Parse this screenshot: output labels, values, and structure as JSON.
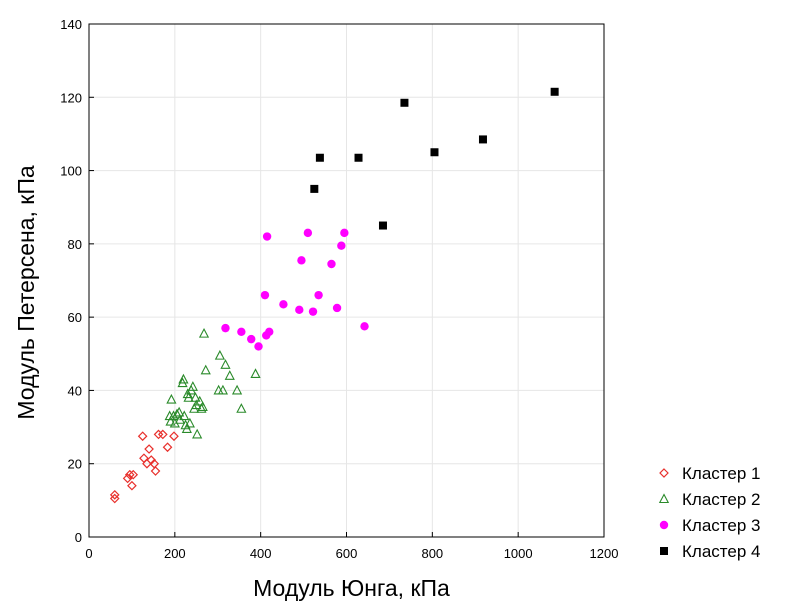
{
  "chart_data": {
    "type": "scatter",
    "title": "",
    "xlabel": "Модуль Юнга, кПа",
    "ylabel": "Модуль Петерсена, кПа",
    "xlim": [
      0,
      1200
    ],
    "ylim": [
      0,
      140
    ],
    "xticks": [
      "0",
      "200",
      "400",
      "600",
      "800",
      "1000",
      "1200"
    ],
    "yticks": [
      "0",
      "20",
      "40",
      "60",
      "80",
      "100",
      "120",
      "140"
    ],
    "grid": true,
    "legend_position": "bottom-right, outside plot",
    "series": [
      {
        "name": "Кластер 1",
        "marker": "open-diamond",
        "color": "#e8302c",
        "points": [
          [
            60,
            11.5
          ],
          [
            60,
            10.5
          ],
          [
            90,
            16
          ],
          [
            95,
            17
          ],
          [
            100,
            14
          ],
          [
            103,
            17
          ],
          [
            125,
            27.5
          ],
          [
            128,
            21.5
          ],
          [
            135,
            20
          ],
          [
            140,
            24
          ],
          [
            145,
            21
          ],
          [
            152,
            20
          ],
          [
            155,
            18
          ],
          [
            162,
            28
          ],
          [
            172,
            28
          ],
          [
            183,
            24.5
          ],
          [
            198,
            27.5
          ]
        ]
      },
      {
        "name": "Кластер 2",
        "marker": "open-triangle",
        "color": "#2a8a2a",
        "points": [
          [
            188,
            33
          ],
          [
            190,
            31.5
          ],
          [
            192,
            37.5
          ],
          [
            197,
            33
          ],
          [
            200,
            31
          ],
          [
            205,
            33.5
          ],
          [
            210,
            34
          ],
          [
            212,
            32
          ],
          [
            218,
            42
          ],
          [
            220,
            43
          ],
          [
            222,
            33
          ],
          [
            225,
            30.5
          ],
          [
            228,
            29.5
          ],
          [
            230,
            39
          ],
          [
            232,
            38
          ],
          [
            235,
            31
          ],
          [
            238,
            40
          ],
          [
            242,
            41
          ],
          [
            245,
            35
          ],
          [
            248,
            38
          ],
          [
            250,
            36
          ],
          [
            252,
            28
          ],
          [
            258,
            37
          ],
          [
            262,
            35
          ],
          [
            265,
            35.5
          ],
          [
            268,
            55.5
          ],
          [
            272,
            45.5
          ],
          [
            302,
            40
          ],
          [
            305,
            49.5
          ],
          [
            312,
            40
          ],
          [
            318,
            47
          ],
          [
            328,
            44
          ],
          [
            345,
            40
          ],
          [
            355,
            35
          ],
          [
            388,
            44.5
          ]
        ]
      },
      {
        "name": "Кластер 3",
        "marker": "filled-circle",
        "color": "#ff00ff",
        "points": [
          [
            318,
            57
          ],
          [
            355,
            56
          ],
          [
            378,
            54
          ],
          [
            395,
            52
          ],
          [
            410,
            66
          ],
          [
            413,
            55
          ],
          [
            415,
            82
          ],
          [
            420,
            56
          ],
          [
            453,
            63.5
          ],
          [
            490,
            62
          ],
          [
            495,
            75.5
          ],
          [
            510,
            83
          ],
          [
            522,
            61.5
          ],
          [
            535,
            66
          ],
          [
            565,
            74.5
          ],
          [
            578,
            62.5
          ],
          [
            588,
            79.5
          ],
          [
            595,
            83
          ],
          [
            642,
            57.5
          ]
        ]
      },
      {
        "name": "Кластер 4",
        "marker": "filled-square",
        "color": "#000000",
        "points": [
          [
            525,
            95
          ],
          [
            538,
            103.5
          ],
          [
            628,
            103.5
          ],
          [
            685,
            85
          ],
          [
            735,
            118.5
          ],
          [
            805,
            105
          ],
          [
            918,
            108.5
          ],
          [
            1085,
            121.5
          ]
        ]
      }
    ]
  }
}
